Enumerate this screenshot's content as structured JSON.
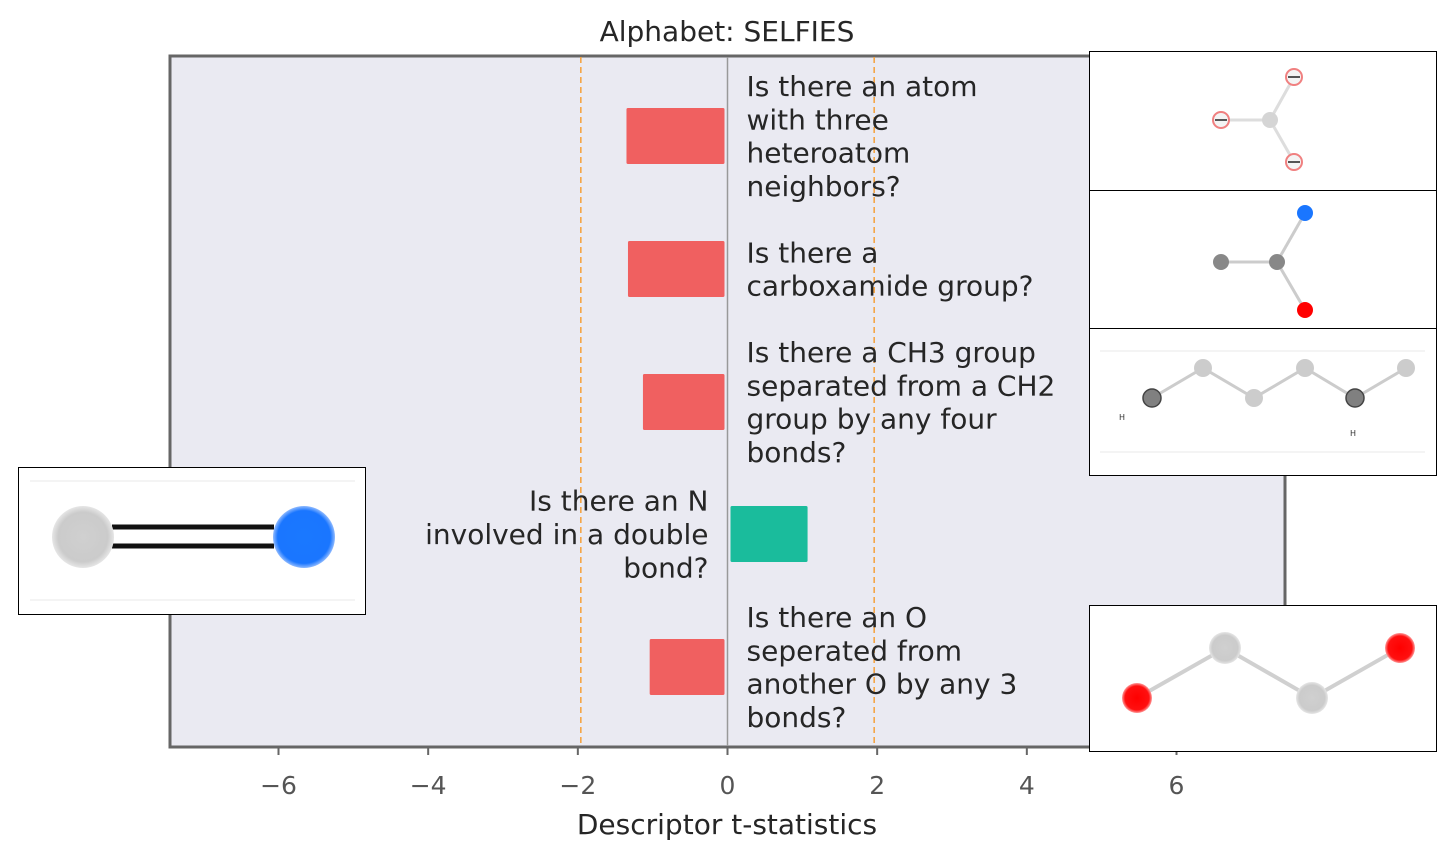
{
  "chart_data": {
    "type": "bar",
    "orientation": "horizontal",
    "title": "Alphabet: SELFIES",
    "xlabel": "Descriptor t-statistics",
    "ylabel": "",
    "xlim": [
      -7.45,
      7.45
    ],
    "xticks": [
      -6,
      -4,
      -2,
      0,
      2,
      4,
      6
    ],
    "xtick_labels": [
      "−6",
      "−4",
      "−2",
      "0",
      "2",
      "4",
      "6"
    ],
    "reference_lines": [
      -1.96,
      1.96
    ],
    "grid": false,
    "categories": [
      "Is there an atom with three heteroatom neighbors?",
      "Is there a carboxamide group?",
      "Is there a CH3 group separated from a CH2 group by any four bonds?",
      "Is there an N involved in a double bond?",
      "Is there an O seperated from another O by any 3 bonds?"
    ],
    "label_lines": [
      [
        "Is there an atom",
        "with three",
        "heteroatom",
        "neighbors?"
      ],
      [
        "Is there a",
        "carboxamide group?"
      ],
      [
        "Is there a CH3 group",
        "separated from a CH2",
        "group by any four",
        "bonds?"
      ],
      [
        "Is there an N",
        "involved in a double",
        "bond?"
      ],
      [
        "Is there an O",
        "seperated from",
        "another O by any 3",
        "bonds?"
      ]
    ],
    "values": [
      -1.35,
      -1.33,
      -1.13,
      1.07,
      -1.04
    ],
    "colors": {
      "negative": "#f06060",
      "positive": "#1abc9c",
      "plot_background": "#eaeaf2",
      "reference_line": "#f5a03a"
    }
  }
}
